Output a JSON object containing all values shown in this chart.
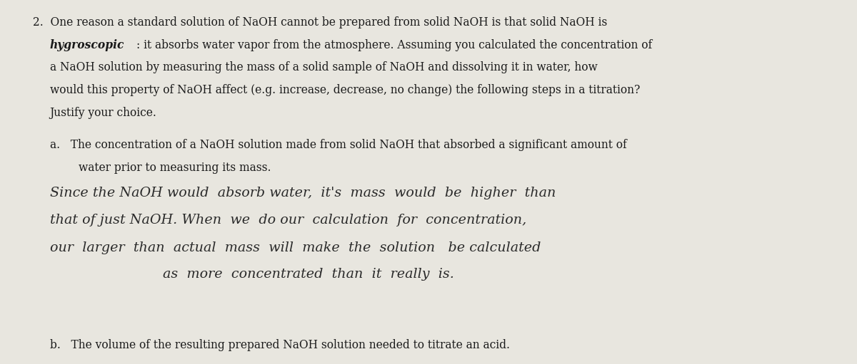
{
  "background_color": "#e8e6df",
  "text_color": "#1a1a1a",
  "hw_color": "#2a2a2a",
  "figsize": [
    12.0,
    5.11
  ],
  "dpi": 100,
  "printed_fontsize": 11.2,
  "hw_fontsize": 13.8,
  "line1": "2.  One reason a standard solution of NaOH cannot be prepared from solid NaOH is that solid NaOH is",
  "line2a": "hygroscopic",
  "line2b": ": it absorbs water vapor from the atmosphere. Assuming you calculated the concentration of",
  "line3": "a NaOH solution by measuring the mass of a solid sample of NaOH and dissolving it in water, how",
  "line4": "would this property of NaOH affect (e.g. increase, decrease, no change) the following steps in a titration?",
  "line5": "Justify your choice.",
  "line6": "a.   The concentration of a NaOH solution made from solid NaOH that absorbed a significant amount of",
  "line7": "water prior to measuring its mass.",
  "hw1": "Since the NaOH would  absorb water,  it's  mass  would  be  higher  than",
  "hw2": "that of just NaOH. When  we  do our  calculation  for  concentration,",
  "hw3": "our  larger  than  actual  mass  will  make  the  solution   be calculated",
  "hw4": "as  more  concentrated  than  it  really  is.",
  "lineb": "b.   The volume of the resulting prepared NaOH solution needed to titrate an acid."
}
